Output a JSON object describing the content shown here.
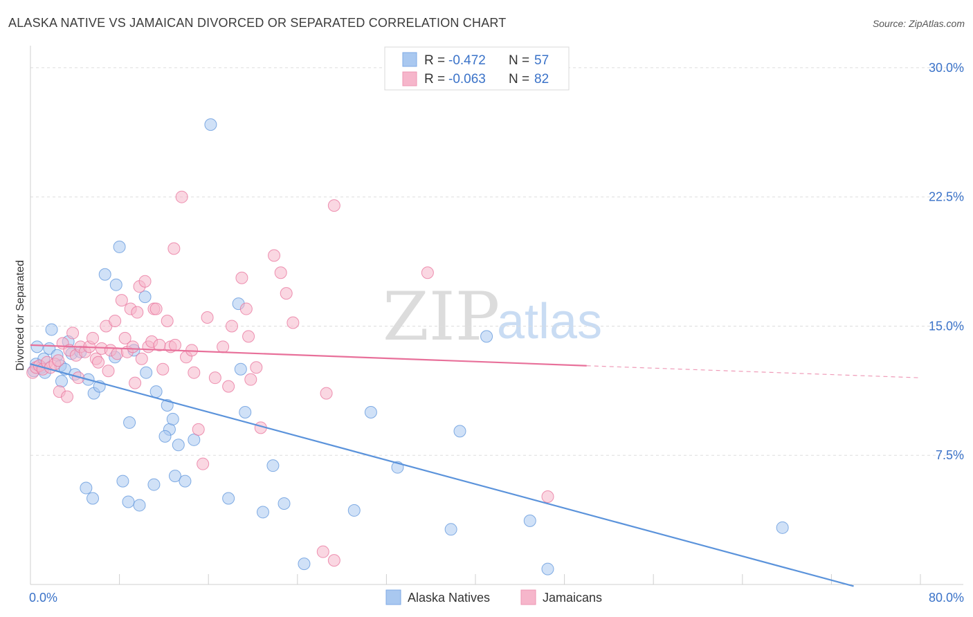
{
  "header": {
    "title": "ALASKA NATIVE VS JAMAICAN DIVORCED OR SEPARATED CORRELATION CHART",
    "source": "Source: ZipAtlas.com"
  },
  "watermark": {
    "zip": "ZIP",
    "atlas": "atlas"
  },
  "legend": {
    "rows": [
      {
        "r_label": "R =",
        "r_value": "-0.472",
        "n_label": "N =",
        "n_value": "57",
        "color": "#a9c8f0"
      },
      {
        "r_label": "R =",
        "r_value": "-0.063",
        "n_label": "N =",
        "n_value": "82",
        "color": "#f6b6cb"
      }
    ]
  },
  "bottom_legend": {
    "items": [
      {
        "label": "Alaska Natives",
        "color": "#a9c8f0"
      },
      {
        "label": "Jamaicans",
        "color": "#f6b6cb"
      }
    ]
  },
  "chart_data": {
    "type": "scatter",
    "title": "ALASKA NATIVE VS JAMAICAN DIVORCED OR SEPARATED CORRELATION CHART",
    "ylabel": "Divorced or Separated",
    "xlabel": "",
    "x_tick_labels": [
      "0.0%",
      "80.0%"
    ],
    "y_tick_labels": [
      "7.5%",
      "15.0%",
      "22.5%",
      "30.0%"
    ],
    "y_ticks": [
      7.5,
      15.0,
      22.5,
      30.0
    ],
    "xlim": [
      0,
      80
    ],
    "ylim": [
      0,
      30.8
    ],
    "grid": true,
    "legend_position": "top-center",
    "series": [
      {
        "name": "Alaska Natives",
        "color": "#5b93db",
        "fill": "#a9c8f0",
        "trend": {
          "x": [
            0,
            74
          ],
          "y": [
            12.8,
            -0.1
          ]
        },
        "points": [
          [
            0.3,
            12.4
          ],
          [
            0.5,
            12.8
          ],
          [
            0.6,
            13.8
          ],
          [
            1.0,
            12.6
          ],
          [
            1.2,
            13.1
          ],
          [
            1.3,
            12.3
          ],
          [
            1.7,
            13.7
          ],
          [
            1.9,
            14.8
          ],
          [
            2.4,
            13.3
          ],
          [
            2.7,
            12.7
          ],
          [
            2.8,
            11.8
          ],
          [
            3.1,
            12.5
          ],
          [
            3.4,
            14.1
          ],
          [
            3.7,
            13.4
          ],
          [
            4.0,
            12.2
          ],
          [
            4.5,
            13.5
          ],
          [
            5.2,
            11.9
          ],
          [
            5.7,
            11.1
          ],
          [
            6.2,
            11.5
          ],
          [
            6.7,
            18.0
          ],
          [
            7.6,
            13.2
          ],
          [
            7.7,
            17.4
          ],
          [
            8.0,
            19.6
          ],
          [
            9.3,
            13.6
          ],
          [
            10.3,
            16.7
          ],
          [
            10.4,
            12.3
          ],
          [
            11.3,
            11.2
          ],
          [
            12.3,
            10.4
          ],
          [
            12.5,
            9.0
          ],
          [
            12.8,
            9.6
          ],
          [
            13.3,
            8.1
          ],
          [
            14.7,
            8.4
          ],
          [
            18.7,
            16.3
          ],
          [
            18.9,
            12.5
          ],
          [
            19.3,
            10.0
          ],
          [
            16.2,
            26.7
          ],
          [
            8.9,
            9.4
          ],
          [
            12.1,
            8.6
          ],
          [
            5.0,
            5.6
          ],
          [
            5.6,
            5.0
          ],
          [
            8.3,
            6.0
          ],
          [
            8.8,
            4.8
          ],
          [
            9.8,
            4.6
          ],
          [
            11.1,
            5.8
          ],
          [
            13.0,
            6.3
          ],
          [
            13.9,
            6.0
          ],
          [
            17.8,
            5.0
          ],
          [
            20.9,
            4.2
          ],
          [
            21.8,
            6.9
          ],
          [
            22.8,
            4.7
          ],
          [
            24.6,
            1.2
          ],
          [
            29.1,
            4.3
          ],
          [
            30.6,
            10.0
          ],
          [
            33.0,
            6.8
          ],
          [
            37.8,
            3.2
          ],
          [
            38.6,
            8.9
          ],
          [
            41.0,
            14.4
          ],
          [
            44.9,
            3.7
          ],
          [
            46.5,
            0.9
          ],
          [
            67.6,
            3.3
          ]
        ]
      },
      {
        "name": "Jamaicans",
        "color": "#e8709a",
        "fill": "#f6b6cb",
        "trend": {
          "x": [
            0,
            50
          ],
          "y": [
            13.9,
            12.7
          ]
        },
        "trend_dashed": {
          "x": [
            50,
            80
          ],
          "y": [
            12.7,
            12.0
          ]
        },
        "points": [
          [
            0.2,
            12.3
          ],
          [
            0.5,
            12.6
          ],
          [
            0.8,
            12.7
          ],
          [
            1.1,
            12.5
          ],
          [
            1.5,
            12.9
          ],
          [
            1.8,
            12.6
          ],
          [
            2.2,
            12.8
          ],
          [
            2.5,
            13.0
          ],
          [
            2.6,
            11.2
          ],
          [
            2.9,
            14.0
          ],
          [
            3.3,
            10.9
          ],
          [
            3.5,
            13.6
          ],
          [
            3.8,
            14.6
          ],
          [
            4.1,
            13.3
          ],
          [
            4.3,
            12.0
          ],
          [
            4.5,
            13.8
          ],
          [
            4.9,
            13.5
          ],
          [
            5.3,
            13.8
          ],
          [
            5.6,
            14.3
          ],
          [
            5.9,
            13.1
          ],
          [
            6.1,
            12.9
          ],
          [
            6.4,
            13.7
          ],
          [
            6.8,
            15.0
          ],
          [
            7.0,
            12.4
          ],
          [
            7.2,
            13.6
          ],
          [
            7.6,
            15.3
          ],
          [
            7.8,
            13.4
          ],
          [
            8.2,
            16.5
          ],
          [
            8.5,
            14.3
          ],
          [
            8.7,
            13.5
          ],
          [
            9.0,
            16.0
          ],
          [
            9.2,
            13.8
          ],
          [
            9.4,
            11.7
          ],
          [
            9.6,
            15.8
          ],
          [
            9.8,
            17.3
          ],
          [
            10.0,
            13.1
          ],
          [
            10.3,
            17.6
          ],
          [
            10.6,
            13.8
          ],
          [
            10.9,
            14.1
          ],
          [
            11.1,
            16.0
          ],
          [
            11.3,
            16.0
          ],
          [
            11.6,
            13.9
          ],
          [
            11.9,
            12.5
          ],
          [
            12.3,
            15.3
          ],
          [
            12.6,
            13.8
          ],
          [
            12.9,
            19.5
          ],
          [
            13.0,
            13.9
          ],
          [
            13.6,
            22.5
          ],
          [
            14.0,
            13.2
          ],
          [
            14.5,
            13.6
          ],
          [
            14.7,
            12.3
          ],
          [
            15.1,
            9.0
          ],
          [
            15.5,
            7.0
          ],
          [
            15.9,
            15.5
          ],
          [
            16.6,
            12.0
          ],
          [
            17.3,
            13.8
          ],
          [
            17.8,
            11.5
          ],
          [
            18.1,
            15.0
          ],
          [
            19.0,
            17.8
          ],
          [
            19.4,
            16.0
          ],
          [
            19.6,
            14.4
          ],
          [
            19.8,
            11.9
          ],
          [
            20.3,
            12.6
          ],
          [
            20.7,
            9.1
          ],
          [
            21.9,
            19.1
          ],
          [
            22.5,
            18.1
          ],
          [
            23.0,
            16.9
          ],
          [
            23.6,
            15.2
          ],
          [
            26.6,
            11.1
          ],
          [
            27.3,
            22.0
          ],
          [
            35.7,
            18.1
          ],
          [
            46.5,
            5.1
          ],
          [
            26.3,
            1.9
          ],
          [
            27.3,
            1.4
          ]
        ]
      }
    ]
  }
}
